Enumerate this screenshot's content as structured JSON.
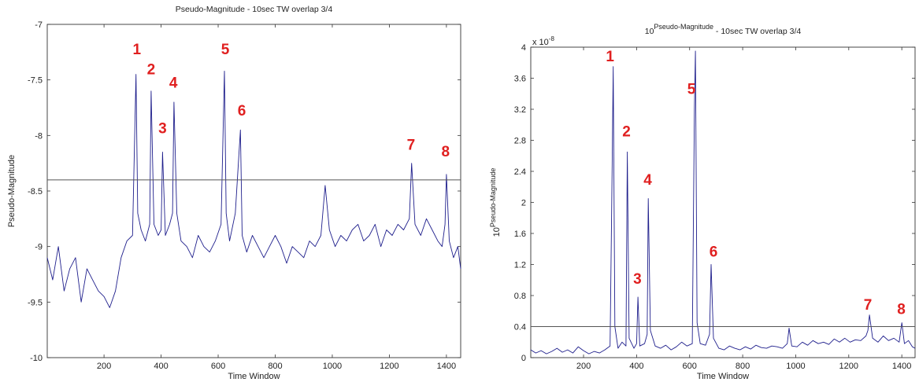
{
  "chart_data": [
    {
      "type": "line",
      "title": "Pseudo-Magnitude - 10sec TW overlap 3/4",
      "xlabel": "Time Window",
      "ylabel": "Pseudo-Magnitude",
      "xlim": [
        1,
        1450
      ],
      "ylim": [
        -10,
        -7
      ],
      "xticks": [
        200,
        400,
        600,
        800,
        1000,
        1200,
        1400
      ],
      "xtick_labels": [
        "200",
        "400",
        "600",
        "800",
        "1000",
        "1200",
        "1400"
      ],
      "yticks": [
        -10,
        -9.5,
        -9,
        -8.5,
        -8,
        -7.5,
        -7
      ],
      "ytick_labels": [
        "-10",
        "-9.5",
        "-9",
        "-8.5",
        "-8",
        "-7.5",
        "-7"
      ],
      "grid": false,
      "threshold": -8.4,
      "line_color": "#1f1f8c",
      "threshold_color": "#555555",
      "annotation_color": "#e02020",
      "series": [
        {
          "x": [
            1,
            20,
            40,
            60,
            80,
            100,
            120,
            140,
            160,
            180,
            200,
            220,
            240,
            260,
            280,
            300,
            312,
            318,
            330,
            345,
            360,
            365,
            375,
            390,
            400,
            405,
            415,
            430,
            440,
            445,
            455,
            470,
            490,
            510,
            530,
            550,
            570,
            590,
            610,
            622,
            628,
            640,
            660,
            678,
            684,
            700,
            720,
            740,
            760,
            780,
            800,
            820,
            840,
            860,
            880,
            900,
            920,
            940,
            960,
            975,
            990,
            1010,
            1030,
            1050,
            1070,
            1090,
            1110,
            1130,
            1150,
            1170,
            1190,
            1210,
            1230,
            1250,
            1270,
            1278,
            1290,
            1310,
            1330,
            1350,
            1370,
            1385,
            1395,
            1400,
            1410,
            1425,
            1440,
            1450
          ],
          "y": [
            -9.1,
            -9.3,
            -9.0,
            -9.4,
            -9.2,
            -9.1,
            -9.5,
            -9.2,
            -9.3,
            -9.4,
            -9.45,
            -9.55,
            -9.4,
            -9.1,
            -8.95,
            -8.9,
            -7.45,
            -8.7,
            -8.85,
            -8.95,
            -8.8,
            -7.6,
            -8.8,
            -8.9,
            -8.85,
            -8.15,
            -8.9,
            -8.8,
            -8.7,
            -7.7,
            -8.7,
            -8.95,
            -9.0,
            -9.1,
            -8.9,
            -9.0,
            -9.05,
            -8.95,
            -8.8,
            -7.42,
            -8.7,
            -8.95,
            -8.7,
            -7.95,
            -8.9,
            -9.05,
            -8.9,
            -9.0,
            -9.1,
            -9.0,
            -8.9,
            -9.0,
            -9.15,
            -9.0,
            -9.05,
            -9.1,
            -8.95,
            -9.0,
            -8.9,
            -8.45,
            -8.85,
            -9.0,
            -8.9,
            -8.95,
            -8.85,
            -8.8,
            -8.95,
            -8.9,
            -8.8,
            -9.0,
            -8.85,
            -8.9,
            -8.8,
            -8.85,
            -8.75,
            -8.25,
            -8.8,
            -8.9,
            -8.75,
            -8.85,
            -8.95,
            -9.0,
            -8.8,
            -8.35,
            -8.95,
            -9.1,
            -9.0,
            -9.2
          ]
        }
      ],
      "annotations": [
        {
          "label": "1",
          "x": 315,
          "y": -7.27
        },
        {
          "label": "2",
          "x": 365,
          "y": -7.45
        },
        {
          "label": "3",
          "x": 405,
          "y": -7.98
        },
        {
          "label": "4",
          "x": 443,
          "y": -7.57
        },
        {
          "label": "5",
          "x": 625,
          "y": -7.27
        },
        {
          "label": "6",
          "x": 683,
          "y": -7.82
        },
        {
          "label": "7",
          "x": 1276,
          "y": -8.13
        },
        {
          "label": "8",
          "x": 1397,
          "y": -8.19
        }
      ]
    },
    {
      "type": "line",
      "title": "10",
      "title_superscript": "Pseudo-Magnitude",
      "title_rest": " - 10sec TW overlap 3/4",
      "xlabel": "Time Window",
      "ylabel": "10",
      "ylabel_superscript": "Pseudo-Magnitude",
      "scale_base": "x 10",
      "scale_exponent": "-8",
      "xlim": [
        1,
        1450
      ],
      "ylim": [
        0,
        4
      ],
      "xticks": [
        200,
        400,
        600,
        800,
        1000,
        1200,
        1400
      ],
      "xtick_labels": [
        "200",
        "400",
        "600",
        "800",
        "1000",
        "1200",
        "1400"
      ],
      "yticks": [
        0,
        0.4,
        0.8,
        1.2,
        1.6,
        2,
        2.4,
        2.8,
        3.2,
        3.6,
        4
      ],
      "ytick_labels": [
        "0",
        "0.4",
        "0.8",
        "1.2",
        "1.6",
        "2",
        "2.4",
        "2.8",
        "3.2",
        "3.6",
        "4"
      ],
      "grid": false,
      "threshold": 0.4,
      "line_color": "#1f1f8c",
      "threshold_color": "#555555",
      "annotation_color": "#e02020",
      "series": [
        {
          "x": [
            1,
            20,
            40,
            60,
            80,
            100,
            120,
            140,
            160,
            180,
            200,
            220,
            240,
            260,
            280,
            300,
            308,
            312,
            318,
            330,
            345,
            360,
            365,
            372,
            390,
            400,
            405,
            412,
            430,
            440,
            444,
            452,
            470,
            490,
            510,
            530,
            550,
            570,
            590,
            610,
            618,
            622,
            628,
            640,
            660,
            675,
            681,
            690,
            710,
            730,
            750,
            770,
            790,
            810,
            830,
            850,
            870,
            890,
            910,
            930,
            950,
            968,
            975,
            985,
            1005,
            1025,
            1045,
            1065,
            1085,
            1105,
            1125,
            1145,
            1165,
            1185,
            1205,
            1225,
            1245,
            1265,
            1272,
            1278,
            1290,
            1310,
            1330,
            1350,
            1370,
            1390,
            1400,
            1410,
            1425,
            1440,
            1450
          ],
          "y": [
            0.1,
            0.06,
            0.09,
            0.05,
            0.08,
            0.12,
            0.07,
            0.1,
            0.06,
            0.14,
            0.09,
            0.05,
            0.08,
            0.06,
            0.1,
            0.15,
            2.5,
            3.75,
            0.4,
            0.12,
            0.2,
            0.15,
            2.65,
            0.25,
            0.12,
            0.18,
            0.78,
            0.15,
            0.18,
            0.3,
            2.05,
            0.35,
            0.15,
            0.12,
            0.16,
            0.1,
            0.14,
            0.2,
            0.15,
            0.18,
            3.2,
            3.95,
            0.45,
            0.18,
            0.16,
            0.3,
            1.2,
            0.25,
            0.12,
            0.1,
            0.15,
            0.12,
            0.1,
            0.14,
            0.11,
            0.16,
            0.13,
            0.12,
            0.15,
            0.14,
            0.12,
            0.18,
            0.38,
            0.15,
            0.14,
            0.2,
            0.16,
            0.22,
            0.18,
            0.2,
            0.17,
            0.24,
            0.2,
            0.25,
            0.2,
            0.23,
            0.22,
            0.28,
            0.35,
            0.55,
            0.25,
            0.2,
            0.28,
            0.22,
            0.25,
            0.2,
            0.45,
            0.18,
            0.22,
            0.14,
            0.12
          ]
        }
      ],
      "annotations": [
        {
          "label": "1",
          "x": 300,
          "y": 3.82
        },
        {
          "label": "2",
          "x": 362,
          "y": 2.85
        },
        {
          "label": "3",
          "x": 403,
          "y": 0.95
        },
        {
          "label": "4",
          "x": 442,
          "y": 2.23
        },
        {
          "label": "5",
          "x": 607,
          "y": 3.4
        },
        {
          "label": "6",
          "x": 690,
          "y": 1.3
        },
        {
          "label": "7",
          "x": 1272,
          "y": 0.62
        },
        {
          "label": "8",
          "x": 1398,
          "y": 0.56
        }
      ]
    }
  ]
}
